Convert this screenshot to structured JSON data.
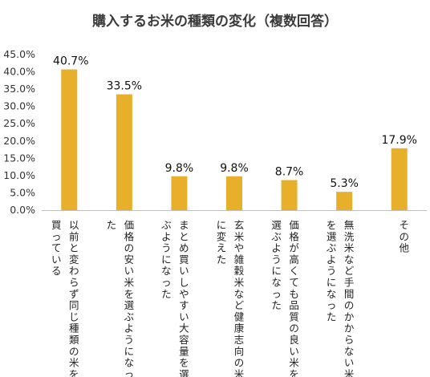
{
  "chart_data": {
    "type": "bar",
    "title": "購入するお米の種類の変化（複数回答）",
    "categories": [
      [
        "以前と変わらず同じ種類の米を",
        "買っている"
      ],
      [
        "価格の安い米を選ぶようになっ",
        "た"
      ],
      [
        "まとめ買いしやすい大容量を選",
        "ぶようになった"
      ],
      [
        "玄米や雑穀米など健康志向の米",
        "に変えた"
      ],
      [
        "価格が高くても品質の良い米を",
        "選ぶようになった"
      ],
      [
        "無洗米など手間のかからない米",
        "を選ぶようになった"
      ],
      [
        "その他"
      ]
    ],
    "values": [
      40.7,
      33.5,
      9.8,
      9.8,
      8.7,
      5.3,
      17.9
    ],
    "value_labels": [
      "40.7%",
      "33.5%",
      "9.8%",
      "9.8%",
      "8.7%",
      "5.3%",
      "17.9%"
    ],
    "yticks": [
      "0.0%",
      "5.0%",
      "10.0%",
      "15.0%",
      "20.0%",
      "25.0%",
      "30.0%",
      "35.0%",
      "40.0%",
      "45.0%"
    ],
    "ylim": [
      0,
      45
    ],
    "bar_color": "#E8B02A",
    "grid": false,
    "xlabel": "",
    "ylabel": ""
  }
}
